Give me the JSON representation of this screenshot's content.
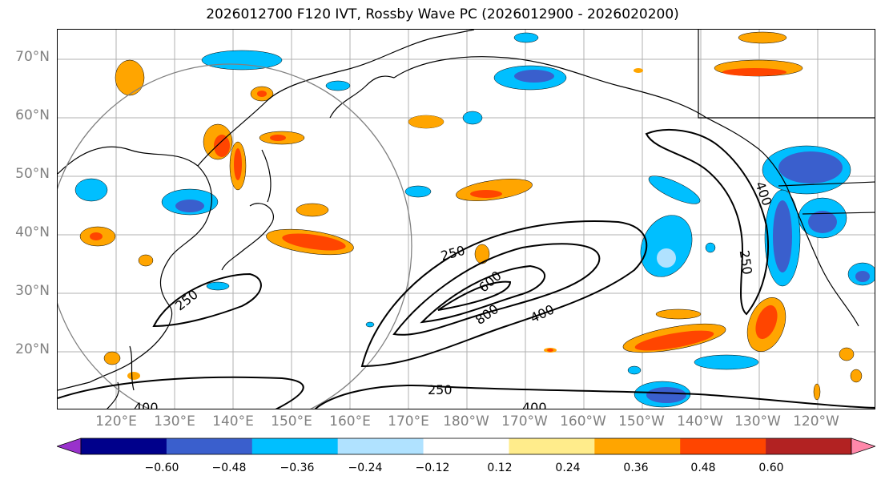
{
  "title": "2026012700 F120 IVT, Rossby Wave PC (2026012900 - 2026020200)",
  "lat_labels": [
    "70°N",
    "60°N",
    "50°N",
    "40°N",
    "30°N",
    "20°N"
  ],
  "lon_labels": [
    "120°E",
    "130°E",
    "140°E",
    "150°E",
    "160°E",
    "170°E",
    "180°W",
    "170°W",
    "160°W",
    "150°W",
    "140°W",
    "130°W",
    "120°W"
  ],
  "contour_labels": [
    "250",
    "250",
    "250",
    "250",
    "400",
    "400",
    "400",
    "400",
    "600",
    "800"
  ],
  "colorbar": {
    "colors": [
      "#9932cc",
      "#00008b",
      "#3a5fcd",
      "#00bfff",
      "#b0e2ff",
      "#ffffff",
      "#ffec8b",
      "#ffa500",
      "#ff4500",
      "#b22222",
      "#ff88aa"
    ],
    "ticks": [
      "−0.60",
      "−0.48",
      "−0.36",
      "−0.24",
      "−0.12",
      "0.12",
      "0.24",
      "0.36",
      "0.48",
      "0.60"
    ]
  },
  "map": {
    "region": "North Pacific",
    "extent_lon": [
      110,
      250
    ],
    "extent_lat": [
      10,
      75
    ],
    "gridlines": true
  }
}
